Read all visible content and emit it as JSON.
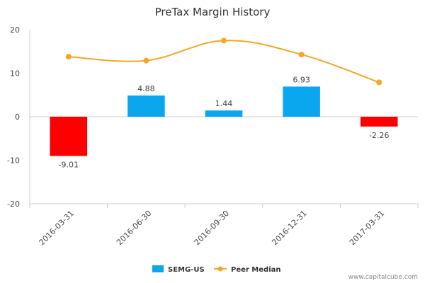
{
  "chart_data": {
    "type": "bar",
    "title": "PreTax Margin History",
    "categories": [
      "2016-03-31",
      "2016-06-30",
      "2016-09-30",
      "2016-12-31",
      "2017-03-31"
    ],
    "ylim": [
      -20,
      20
    ],
    "yticks": [
      20,
      10,
      0,
      -10,
      -20
    ],
    "series": [
      {
        "name": "SEMG-US",
        "type": "bar",
        "values": [
          -9.01,
          4.88,
          1.44,
          6.93,
          -2.26
        ],
        "labels": [
          "-9.01",
          "4.88",
          "1.44",
          "6.93",
          "-2.26"
        ],
        "color_positive": "#0aa6ee",
        "color_negative": "#ff0000"
      },
      {
        "name": "Peer Median",
        "type": "line",
        "values": [
          13.8,
          12.9,
          17.5,
          14.3,
          7.9
        ],
        "color": "#f5a623"
      }
    ],
    "grid": false,
    "legend": "bottom"
  },
  "watermark": "www.capitalcube.com",
  "colors": {
    "axis": "#cccccc",
    "zero_line": "#999999"
  }
}
